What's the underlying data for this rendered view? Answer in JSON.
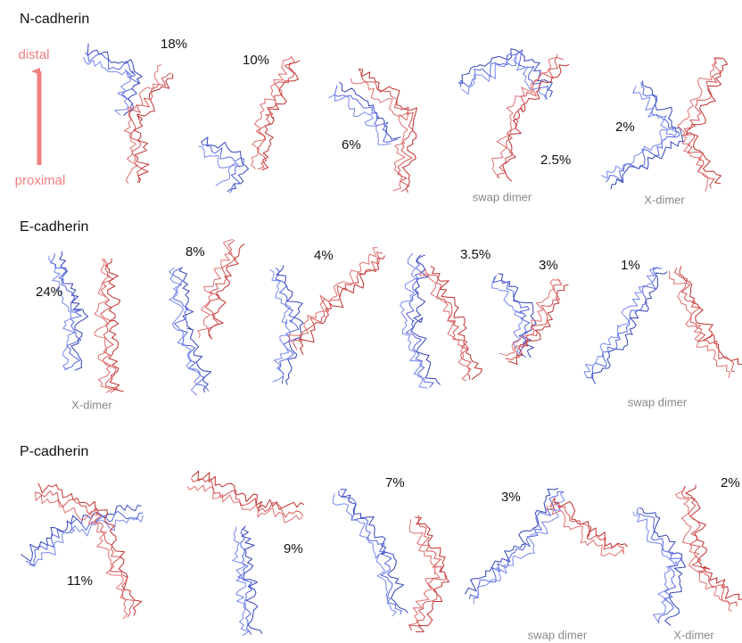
{
  "legend": {
    "top": "distal",
    "bottom": "proximal"
  },
  "rows": [
    {
      "title": "N-cadherin",
      "panels": [
        {
          "percent": "18%"
        },
        {
          "percent": "10%"
        },
        {
          "percent": "6%"
        },
        {
          "percent": "2.5%",
          "note": "swap dimer"
        },
        {
          "percent": "2%",
          "note": "X-dimer"
        }
      ]
    },
    {
      "title": "E-cadherin",
      "panels": [
        {
          "percent": "24%",
          "note": "X-dimer"
        },
        {
          "percent": "8%"
        },
        {
          "percent": "4%"
        },
        {
          "percent": "3.5%"
        },
        {
          "percent": "3%"
        },
        {
          "percent": "1%",
          "note": "swap dimer"
        }
      ]
    },
    {
      "title": "P-cadherin",
      "panels": [
        {
          "percent": "11%"
        },
        {
          "percent": "9%"
        },
        {
          "percent": "7%"
        },
        {
          "percent": "3%",
          "note": "swap dimer"
        },
        {
          "percent": "2%",
          "note": "X-dimer"
        }
      ]
    }
  ]
}
